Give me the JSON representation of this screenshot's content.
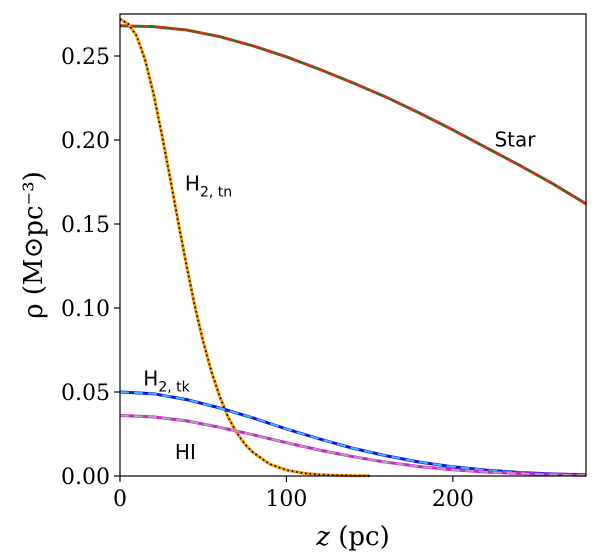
{
  "chart_data": {
    "type": "line",
    "xlabel_var": "z",
    "xlabel_unit": " (pc)",
    "ylabel": "ρ (M⊙pc⁻³)",
    "xlim": [
      0,
      280
    ],
    "ylim": [
      0,
      0.275
    ],
    "xticks": [
      0,
      100,
      200
    ],
    "yticks": [
      0.0,
      0.05,
      0.1,
      0.15,
      0.2,
      0.25
    ],
    "grid": false,
    "series": [
      {
        "name": "Star",
        "color": "#e8241e",
        "overlay_color": "#1f7a1f",
        "overlay_style": "dashed",
        "x": [
          0,
          20,
          40,
          60,
          80,
          100,
          120,
          140,
          160,
          180,
          200,
          220,
          240,
          260,
          280
        ],
        "y": [
          0.268,
          0.2675,
          0.2655,
          0.2615,
          0.256,
          0.2495,
          0.242,
          0.234,
          0.2255,
          0.216,
          0.206,
          0.1955,
          0.185,
          0.174,
          0.162
        ]
      },
      {
        "name": "H2,tn",
        "color": "#ff9900",
        "overlay_color": "#000000",
        "overlay_style": "dotted",
        "x": [
          0,
          5,
          10,
          15,
          20,
          25,
          30,
          35,
          40,
          45,
          50,
          55,
          60,
          65,
          70,
          75,
          80,
          90,
          100,
          110,
          120,
          130,
          140,
          150
        ],
        "y": [
          0.272,
          0.269,
          0.262,
          0.248,
          0.228,
          0.204,
          0.178,
          0.151,
          0.125,
          0.101,
          0.08,
          0.062,
          0.047,
          0.035,
          0.026,
          0.019,
          0.014,
          0.007,
          0.0035,
          0.0017,
          0.0008,
          0.0004,
          0.0002,
          0.0001
        ]
      },
      {
        "name": "H2,tk",
        "color": "#1010e0",
        "overlay_color": "#40c0ff",
        "overlay_style": "dashed",
        "x": [
          0,
          20,
          40,
          60,
          80,
          100,
          120,
          140,
          160,
          180,
          200,
          220,
          240,
          260,
          280
        ],
        "y": [
          0.05,
          0.049,
          0.0455,
          0.0405,
          0.0345,
          0.028,
          0.022,
          0.0165,
          0.012,
          0.0083,
          0.0055,
          0.0035,
          0.0021,
          0.0012,
          0.0007
        ]
      },
      {
        "name": "HI",
        "color": "#cc22cc",
        "overlay_color": "#aaaaaa",
        "overlay_style": "dashed",
        "x": [
          0,
          20,
          40,
          60,
          80,
          100,
          120,
          140,
          160,
          180,
          200,
          220,
          240,
          260,
          280
        ],
        "y": [
          0.036,
          0.0352,
          0.0328,
          0.029,
          0.0245,
          0.0198,
          0.0154,
          0.0115,
          0.0082,
          0.0056,
          0.0037,
          0.0024,
          0.0015,
          0.0009,
          0.0005
        ]
      }
    ],
    "annotations": [
      {
        "series": "Star",
        "main": "Star",
        "sub": "",
        "x": 225,
        "y": 0.196
      },
      {
        "series": "H2,tn",
        "main": "H",
        "sub": "2, tn",
        "x": 39,
        "y": 0.17
      },
      {
        "series": "H2,tk",
        "main": "H",
        "sub": "2, tk",
        "x": 14,
        "y": 0.054
      },
      {
        "series": "HI",
        "main": "HI",
        "sub": "",
        "x": 33,
        "y": 0.01
      }
    ]
  }
}
